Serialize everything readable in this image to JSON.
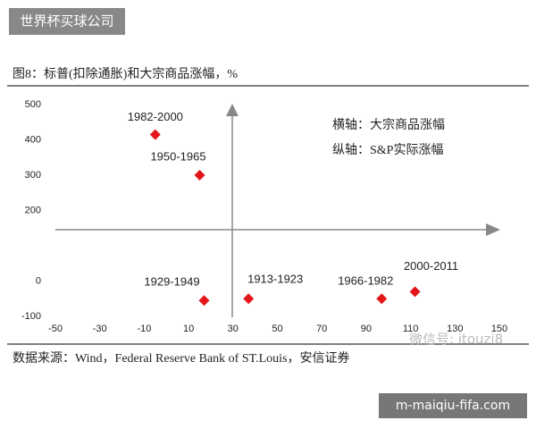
{
  "chart_data": {
    "type": "scatter",
    "title": "图8：标普(扣除通胀)和大宗商品涨幅，%",
    "labels": [
      "1982-2000",
      "1950-1965",
      "1929-1949",
      "1913-1923",
      "1966-1982",
      "2000-2011"
    ],
    "x": [
      -5,
      15,
      17,
      37,
      97,
      112
    ],
    "values": [
      415,
      300,
      -55,
      -50,
      -50,
      -30
    ],
    "color": "#e3171b",
    "xlim": [
      -50,
      150
    ],
    "xticks": [
      -50,
      -30,
      -10,
      10,
      30,
      50,
      70,
      90,
      110,
      130,
      150
    ],
    "ylim": [
      -100,
      500
    ],
    "yticks": [
      500,
      400,
      300,
      200,
      0,
      -100
    ],
    "annotations": [
      "横轴：大宗商品涨幅",
      "纵轴：S&P实际涨幅"
    ],
    "source": "数据来源：Wind，Federal Reserve Bank of ST.Louis，安信证券"
  },
  "watermarks": [
    "世界杯买球公司",
    "微信号: itouzi8",
    "m-maiqiu-fifa.com"
  ]
}
